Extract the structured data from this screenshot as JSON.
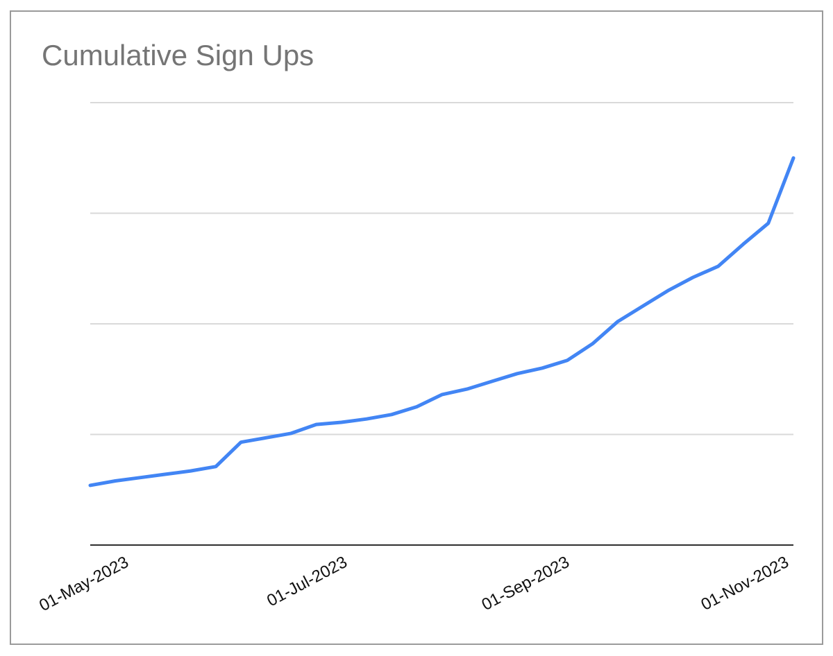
{
  "chart_data": {
    "type": "line",
    "title": "Cumulative Sign Ups",
    "xlabel": "",
    "ylabel": "",
    "legend": "none",
    "grid": "horizontal",
    "y_axis": {
      "labels_visible": false,
      "ylim_gridline_units": [
        0,
        4.0
      ],
      "gridline_values": [
        1,
        2,
        3,
        4
      ],
      "note": "No y-axis tick labels are shown in the chart; series values are estimated in gridline intervals above the x-axis baseline."
    },
    "x_axis": {
      "total_days": 196,
      "label_angle_deg": 28,
      "ticks": [
        {
          "label": "01-May-2023",
          "day_offset": 9
        },
        {
          "label": "01-Jul-2023",
          "day_offset": 70
        },
        {
          "label": "01-Sep-2023",
          "day_offset": 132
        },
        {
          "label": "01-Nov-2023",
          "day_offset": 193
        }
      ]
    },
    "series": [
      {
        "name": "Cumulative sign ups",
        "cadence": "weekly",
        "x_dates": [
          "22-Apr-2023",
          "29-Apr-2023",
          "06-May-2023",
          "13-May-2023",
          "20-May-2023",
          "27-May-2023",
          "03-Jun-2023",
          "10-Jun-2023",
          "17-Jun-2023",
          "24-Jun-2023",
          "01-Jul-2023",
          "08-Jul-2023",
          "15-Jul-2023",
          "22-Jul-2023",
          "29-Jul-2023",
          "05-Aug-2023",
          "12-Aug-2023",
          "19-Aug-2023",
          "26-Aug-2023",
          "02-Sep-2023",
          "09-Sep-2023",
          "16-Sep-2023",
          "23-Sep-2023",
          "30-Sep-2023",
          "07-Oct-2023",
          "14-Oct-2023",
          "21-Oct-2023",
          "28-Oct-2023",
          "04-Nov-2023"
        ],
        "values": [
          0.54,
          0.58,
          0.61,
          0.64,
          0.67,
          0.71,
          0.93,
          0.97,
          1.01,
          1.09,
          1.11,
          1.14,
          1.18,
          1.25,
          1.36,
          1.41,
          1.48,
          1.55,
          1.6,
          1.67,
          1.82,
          2.02,
          2.16,
          2.3,
          2.42,
          2.52,
          2.72,
          2.91,
          3.5
        ]
      }
    ],
    "colors": {
      "line": "#4285f4",
      "gridline": "#d9d9d9",
      "axis_line": "#2e2e2e",
      "title_text": "#757575",
      "tick_text": "#111111",
      "frame_border": "#9a9a9a",
      "background": "#ffffff"
    }
  }
}
